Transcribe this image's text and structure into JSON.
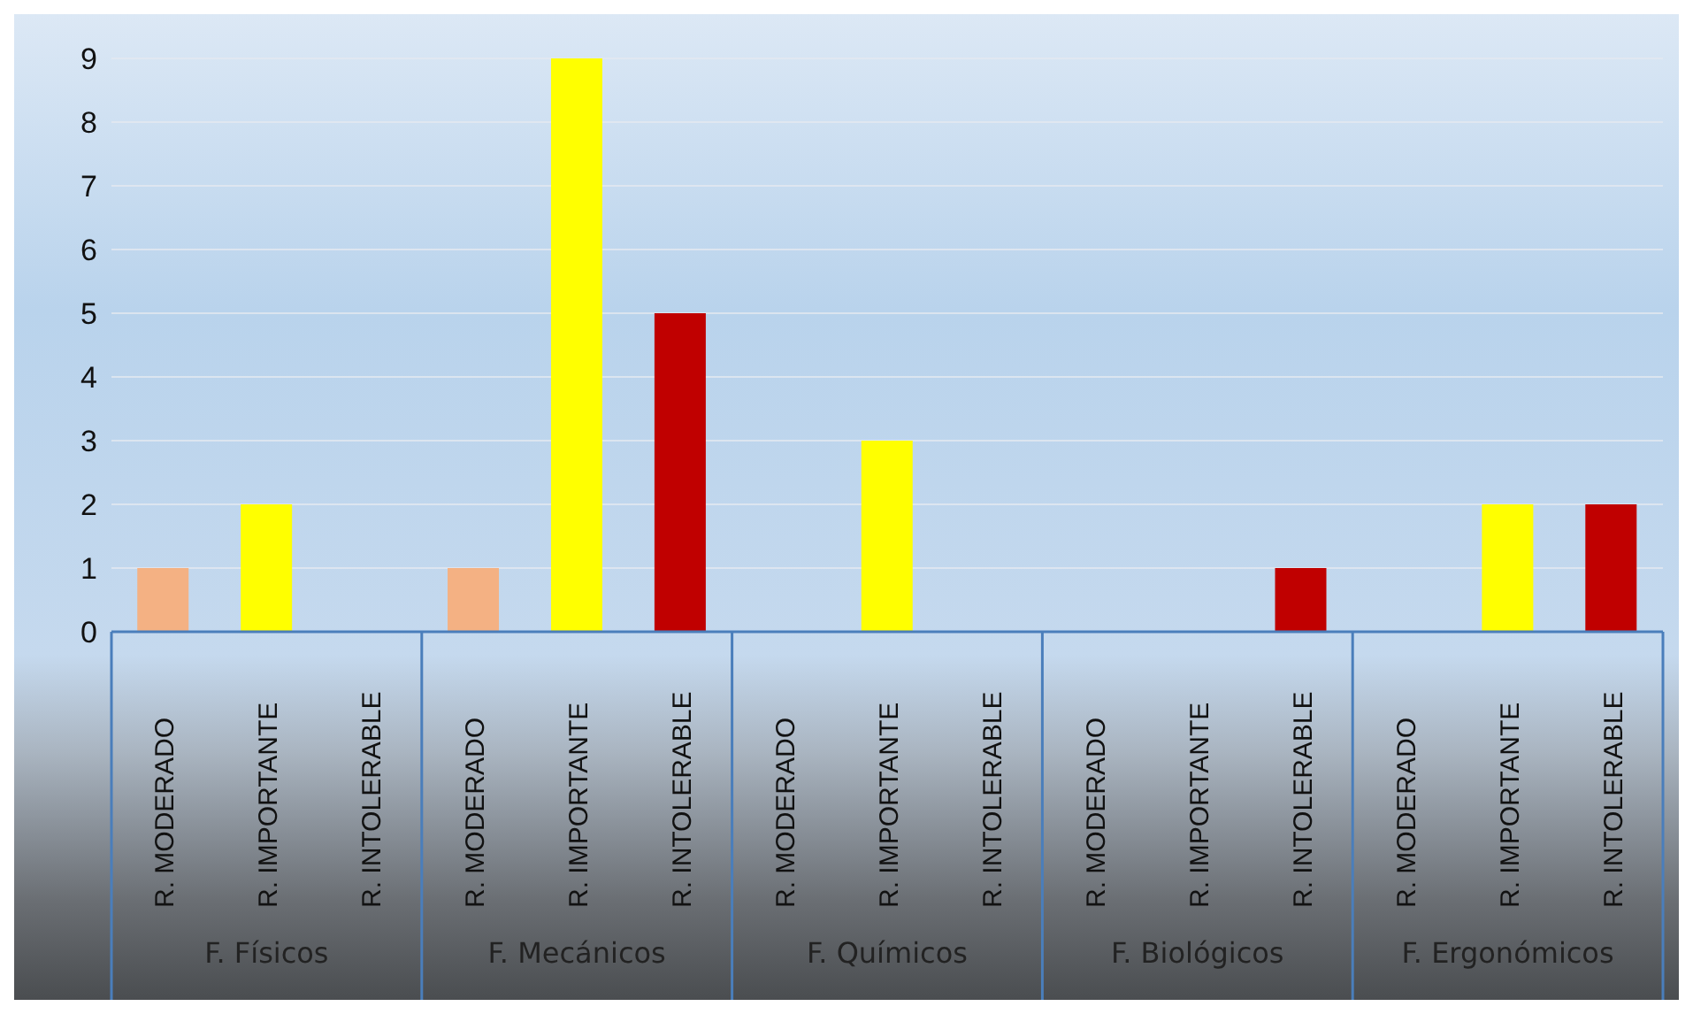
{
  "chart_data": {
    "type": "bar",
    "categories": [
      "R. MODERADO",
      "R. IMPORTANTE",
      "R. INTOLERABLE",
      "R. MODERADO",
      "R. IMPORTANTE",
      "R. INTOLERABLE",
      "R. MODERADO",
      "R. IMPORTANTE",
      "R. INTOLERABLE",
      "R. MODERADO",
      "R. IMPORTANTE",
      "R. INTOLERABLE",
      "R. MODERADO",
      "R. IMPORTANTE",
      "R. INTOLERABLE"
    ],
    "values": [
      1,
      2,
      0,
      1,
      9,
      5,
      0,
      3,
      0,
      0,
      0,
      1,
      0,
      2,
      2
    ],
    "colors": [
      "#f4b183",
      "#ffff00",
      "#c00000",
      "#f4b183",
      "#ffff00",
      "#c00000",
      "#f4b183",
      "#ffff00",
      "#c00000",
      "#f4b183",
      "#ffff00",
      "#c00000",
      "#f4b183",
      "#ffff00",
      "#c00000"
    ],
    "annotations": [
      "F. Físicos",
      "F. Mecánicos",
      "F. Químicos",
      "F. Biológicos",
      "F. Ergonómicos"
    ],
    "ylim": [
      0,
      9
    ],
    "yticks": [
      0,
      1,
      2,
      3,
      4,
      5,
      6,
      7,
      8,
      9
    ],
    "grid": "y"
  }
}
